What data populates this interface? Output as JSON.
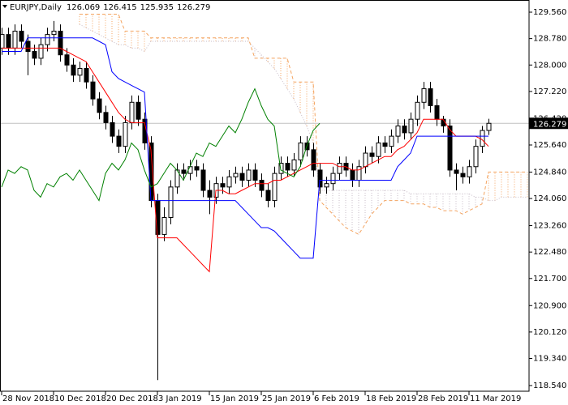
{
  "chart_data": {
    "type": "candlestick",
    "title": "EURJPY,Daily",
    "open": [
      128.5,
      128.9,
      128.5,
      129.0,
      128.7,
      128.4,
      128.2,
      128.6,
      128.9,
      129.0,
      128.3,
      128.0,
      127.7,
      127.9,
      127.5,
      127.0,
      126.6,
      126.3,
      125.9,
      125.6,
      126.3,
      126.9,
      126.4,
      125.7,
      124.0,
      123.0,
      123.5,
      124.4,
      124.9,
      124.8,
      125.0,
      124.9,
      124.3,
      124.1,
      124.5,
      124.4,
      124.7,
      124.8,
      124.6,
      124.9,
      124.6,
      124.3,
      124.0,
      124.8,
      125.1,
      124.9,
      125.2,
      125.7,
      125.5,
      124.9,
      124.4,
      124.5,
      124.8,
      125.1,
      124.9,
      124.6,
      125.0,
      125.4,
      125.3,
      125.7,
      125.6,
      125.9,
      126.2,
      126.0,
      126.4,
      126.9,
      127.3,
      126.8,
      126.4,
      126.2,
      124.9,
      124.8,
      124.7,
      125.0,
      125.6,
      126.069
    ],
    "high": [
      129.1,
      129.1,
      129.2,
      129.2,
      128.9,
      128.6,
      128.8,
      129.1,
      129.3,
      129.2,
      128.5,
      128.2,
      128.1,
      128.1,
      127.7,
      127.2,
      126.8,
      126.5,
      126.1,
      126.5,
      127.1,
      127.1,
      126.6,
      125.9,
      124.2,
      123.8,
      124.6,
      125.1,
      125.1,
      125.2,
      125.2,
      125.1,
      124.6,
      124.7,
      124.7,
      124.9,
      125.0,
      125.0,
      125.1,
      125.1,
      124.8,
      124.5,
      125.0,
      125.3,
      125.3,
      125.4,
      125.9,
      125.9,
      125.7,
      125.1,
      124.7,
      125.0,
      125.3,
      125.3,
      125.1,
      125.2,
      125.6,
      125.6,
      125.9,
      125.9,
      126.1,
      126.4,
      126.4,
      126.6,
      127.1,
      127.5,
      127.5,
      127.0,
      126.5,
      126.4,
      125.1,
      125.0,
      125.2,
      125.8,
      126.2,
      126.415
    ],
    "low": [
      128.3,
      128.3,
      128.3,
      128.5,
      127.7,
      128.0,
      128.0,
      128.4,
      128.7,
      128.1,
      127.8,
      127.5,
      127.5,
      127.3,
      126.8,
      126.4,
      126.1,
      125.7,
      125.4,
      125.4,
      126.1,
      126.2,
      125.5,
      123.8,
      118.7,
      122.8,
      123.3,
      124.2,
      124.6,
      124.6,
      124.7,
      124.1,
      123.6,
      123.9,
      124.2,
      124.2,
      124.5,
      124.4,
      124.4,
      124.4,
      124.1,
      123.8,
      123.8,
      124.6,
      124.7,
      124.7,
      125.0,
      125.3,
      124.7,
      124.2,
      124.2,
      124.3,
      124.6,
      124.7,
      124.4,
      124.4,
      124.8,
      125.1,
      125.1,
      125.4,
      125.4,
      125.7,
      125.8,
      125.8,
      126.2,
      126.7,
      126.6,
      126.2,
      126.0,
      124.7,
      124.3,
      124.5,
      124.5,
      124.8,
      125.4,
      125.935
    ],
    "close": [
      128.9,
      128.5,
      129.0,
      128.7,
      128.4,
      128.2,
      128.6,
      128.9,
      129.0,
      128.3,
      128.0,
      127.7,
      127.9,
      127.5,
      127.0,
      126.6,
      126.3,
      125.9,
      125.6,
      126.3,
      126.9,
      126.4,
      125.7,
      124.0,
      123.0,
      123.5,
      124.4,
      124.9,
      124.8,
      125.0,
      124.9,
      124.3,
      124.1,
      124.5,
      124.4,
      124.7,
      124.8,
      124.6,
      124.9,
      124.6,
      124.3,
      124.0,
      124.8,
      125.1,
      124.9,
      125.2,
      125.7,
      125.5,
      124.9,
      124.4,
      124.5,
      124.8,
      125.1,
      124.9,
      124.6,
      125.0,
      125.4,
      125.3,
      125.7,
      125.6,
      125.9,
      126.2,
      126.0,
      126.4,
      126.9,
      127.3,
      126.8,
      126.4,
      126.2,
      124.9,
      124.8,
      124.7,
      125.0,
      125.6,
      126.069,
      126.279
    ],
    "series": [
      {
        "color": "#ff0000",
        "dash": "solid",
        "values": [
          128.5,
          128.5,
          128.5,
          128.5,
          128.5,
          128.5,
          128.5,
          128.5,
          128.5,
          128.5,
          128.4,
          128.3,
          128.2,
          128.1,
          127.8,
          127.5,
          127.2,
          126.9,
          126.6,
          126.4,
          126.3,
          126.3,
          126.3,
          125.5,
          122.9,
          122.9,
          122.9,
          122.9,
          122.7,
          122.5,
          122.3,
          122.1,
          121.9,
          124.3,
          124.3,
          124.2,
          124.2,
          124.3,
          124.4,
          124.5,
          124.5,
          124.5,
          124.6,
          124.6,
          124.7,
          124.8,
          124.9,
          125.0,
          125.1,
          125.1,
          125.1,
          125.1,
          125.0,
          125.0,
          124.9,
          124.9,
          125.0,
          125.1,
          125.2,
          125.3,
          125.3,
          125.5,
          125.6,
          125.8,
          126.0,
          126.4,
          126.4,
          126.4,
          126.4,
          126.1,
          125.9,
          125.9,
          125.9,
          125.9,
          125.8,
          125.6
        ]
      },
      {
        "color": "#0000ff",
        "dash": "solid",
        "values": [
          128.4,
          128.4,
          128.4,
          128.4,
          128.8,
          128.8,
          128.8,
          128.8,
          128.8,
          128.8,
          128.8,
          128.8,
          128.8,
          128.8,
          128.8,
          128.7,
          128.6,
          127.8,
          127.6,
          127.5,
          127.4,
          127.3,
          127.2,
          124.0,
          124.0,
          124.0,
          124.0,
          124.0,
          124.0,
          124.0,
          124.0,
          124.0,
          124.0,
          124.0,
          124.0,
          124.0,
          124.0,
          123.8,
          123.6,
          123.4,
          123.2,
          123.2,
          123.1,
          122.9,
          122.7,
          122.5,
          122.3,
          122.3,
          122.3,
          124.6,
          124.6,
          124.6,
          124.6,
          124.6,
          124.6,
          124.6,
          124.6,
          124.6,
          124.6,
          124.6,
          124.6,
          125.0,
          125.2,
          125.4,
          125.9,
          125.9,
          125.9,
          125.9,
          125.9,
          125.9,
          125.9,
          125.9,
          125.9,
          125.9,
          125.9,
          125.9
        ]
      },
      {
        "color": "#008000",
        "dash": "solid",
        "values": [
          124.4,
          124.9,
          124.8,
          125.0,
          124.9,
          124.3,
          124.1,
          124.5,
          124.4,
          124.7,
          124.8,
          124.6,
          124.9,
          124.6,
          124.3,
          124.0,
          124.8,
          125.1,
          124.9,
          125.2,
          125.7,
          125.5,
          124.9,
          124.4,
          124.5,
          124.8,
          125.1,
          124.9,
          124.6,
          125.0,
          125.4,
          125.3,
          125.7,
          125.6,
          125.9,
          126.2,
          126.0,
          126.4,
          126.9,
          127.3,
          126.8,
          126.4,
          126.2,
          124.9,
          124.8,
          124.7,
          125.0,
          125.6,
          126.069,
          126.279
        ]
      },
      {
        "color": "#c8bcc8",
        "dash": "dotted",
        "values": [
          null,
          null,
          null,
          null,
          null,
          null,
          null,
          null,
          null,
          null,
          null,
          null,
          129.2,
          129.1,
          129.0,
          128.9,
          128.8,
          128.7,
          128.6,
          128.6,
          128.5,
          128.5,
          128.4,
          128.7,
          128.7,
          128.7,
          128.7,
          128.7,
          128.7,
          128.7,
          128.7,
          128.7,
          128.7,
          128.7,
          128.7,
          128.7,
          128.7,
          128.7,
          128.7,
          128.5,
          128.3,
          128.1,
          127.9,
          127.6,
          127.3,
          127.0,
          126.6,
          126.2,
          125.7,
          124.3,
          124.3,
          124.3,
          124.3,
          124.3,
          124.3,
          124.3,
          124.3,
          124.3,
          124.3,
          124.3,
          124.3,
          124.3,
          124.3,
          124.2,
          124.2,
          124.2,
          124.2,
          124.2,
          124.2,
          124.2,
          124.2,
          124.2,
          124.2,
          124.1,
          124.1,
          124.0,
          124.0,
          124.1,
          124.1,
          124.1,
          124.1,
          124.1
        ]
      },
      {
        "color": "#f4a460",
        "dash": "dashed",
        "values": [
          null,
          null,
          null,
          null,
          null,
          null,
          null,
          null,
          null,
          null,
          null,
          null,
          129.5,
          129.5,
          129.5,
          129.5,
          129.5,
          129.5,
          129.5,
          129.0,
          129.0,
          129.0,
          129.0,
          128.8,
          128.8,
          128.8,
          128.8,
          128.8,
          128.8,
          128.8,
          128.8,
          128.8,
          128.8,
          128.8,
          128.8,
          128.8,
          128.8,
          128.8,
          128.8,
          128.2,
          128.2,
          128.2,
          128.2,
          128.2,
          128.2,
          127.5,
          127.5,
          127.5,
          127.5,
          124.0,
          123.8,
          123.6,
          123.4,
          123.2,
          123.1,
          123.0,
          123.3,
          123.6,
          123.8,
          124.0,
          124.0,
          124.0,
          124.0,
          123.9,
          123.9,
          123.9,
          123.8,
          123.8,
          123.7,
          123.7,
          123.7,
          123.6,
          123.7,
          123.8,
          123.9,
          124.84,
          124.84,
          124.84,
          124.84,
          124.84,
          124.84,
          124.84
        ]
      }
    ],
    "fill_between": [
      3,
      4
    ],
    "xlim": [
      -0.25,
      81.25
    ],
    "ylim": [
      118.372,
      129.919
    ],
    "xticks": [
      {
        "value": 0,
        "label": "28 Nov 2018"
      },
      {
        "value": 8,
        "label": "10 Dec 2018"
      },
      {
        "value": 16,
        "label": "20 Dec 2018"
      },
      {
        "value": 24,
        "label": "3 Jan 2019"
      },
      {
        "value": 32,
        "label": "15 Jan 2019"
      },
      {
        "value": 40,
        "label": "25 Jan 2019"
      },
      {
        "value": 48,
        "label": "6 Feb 2019"
      },
      {
        "value": 56,
        "label": "18 Feb 2019"
      },
      {
        "value": 64,
        "label": "28 Feb 2019"
      },
      {
        "value": 72,
        "label": "11 Mar 2019"
      }
    ],
    "yticks": [
      {
        "value": 129.56,
        "label": "129.560"
      },
      {
        "value": 128.78,
        "label": "128.780"
      },
      {
        "value": 128.0,
        "label": "128.000"
      },
      {
        "value": 127.22,
        "label": "127.220"
      },
      {
        "value": 126.42,
        "label": "126.420"
      },
      {
        "value": 125.64,
        "label": "125.640"
      },
      {
        "value": 124.84,
        "label": "124.840"
      },
      {
        "value": 124.06,
        "label": "124.060"
      },
      {
        "value": 123.26,
        "label": "123.260"
      },
      {
        "value": 122.48,
        "label": "122.480"
      },
      {
        "value": 121.7,
        "label": "121.700"
      },
      {
        "value": 120.9,
        "label": "120.900"
      },
      {
        "value": 120.12,
        "label": "120.120"
      },
      {
        "value": 119.34,
        "label": "119.340"
      },
      {
        "value": 118.54,
        "label": "118.540"
      }
    ]
  }
}
